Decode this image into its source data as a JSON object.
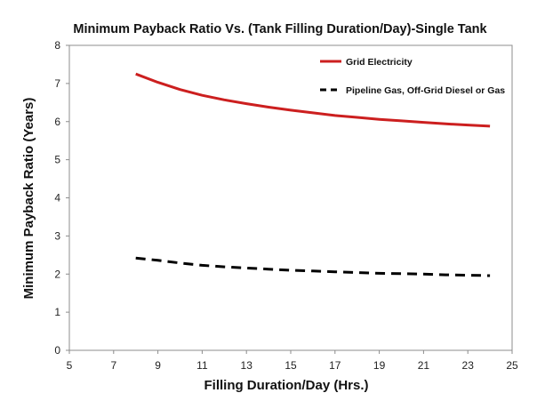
{
  "chart_data": {
    "type": "line",
    "title": "Minimum Payback Ratio Vs. (Tank Filling Duration/Day)-Single Tank",
    "xlabel": "Filling Duration/Day (Hrs.)",
    "ylabel": "Minimum Payback Ratio (Years)",
    "xlim": [
      5,
      25
    ],
    "ylim": [
      0,
      8
    ],
    "xticks": [
      "5",
      "7",
      "9",
      "11",
      "13",
      "15",
      "17",
      "19",
      "21",
      "23",
      "25"
    ],
    "yticks": [
      "0",
      "1",
      "2",
      "3",
      "4",
      "5",
      "6",
      "7",
      "8"
    ],
    "grid": false,
    "legend_position": "top-right",
    "series": [
      {
        "name": "Grid Electricity",
        "color": "#cc1f1f",
        "style": "solid",
        "x": [
          8,
          9,
          10,
          11,
          12,
          13,
          14,
          15,
          16,
          17,
          18,
          19,
          20,
          21,
          22,
          23,
          24
        ],
        "y": [
          7.25,
          7.03,
          6.84,
          6.69,
          6.57,
          6.47,
          6.38,
          6.3,
          6.23,
          6.16,
          6.11,
          6.06,
          6.02,
          5.98,
          5.94,
          5.91,
          5.88
        ]
      },
      {
        "name": "Pipeline Gas, Off-Grid Diesel or Gas",
        "color": "#000000",
        "style": "dashed",
        "x": [
          8,
          9,
          10,
          11,
          12,
          13,
          14,
          15,
          16,
          17,
          18,
          19,
          20,
          21,
          22,
          23,
          24
        ],
        "y": [
          2.42,
          2.36,
          2.29,
          2.23,
          2.19,
          2.16,
          2.13,
          2.1,
          2.08,
          2.06,
          2.04,
          2.02,
          2.01,
          2.0,
          1.98,
          1.97,
          1.96
        ]
      }
    ]
  }
}
